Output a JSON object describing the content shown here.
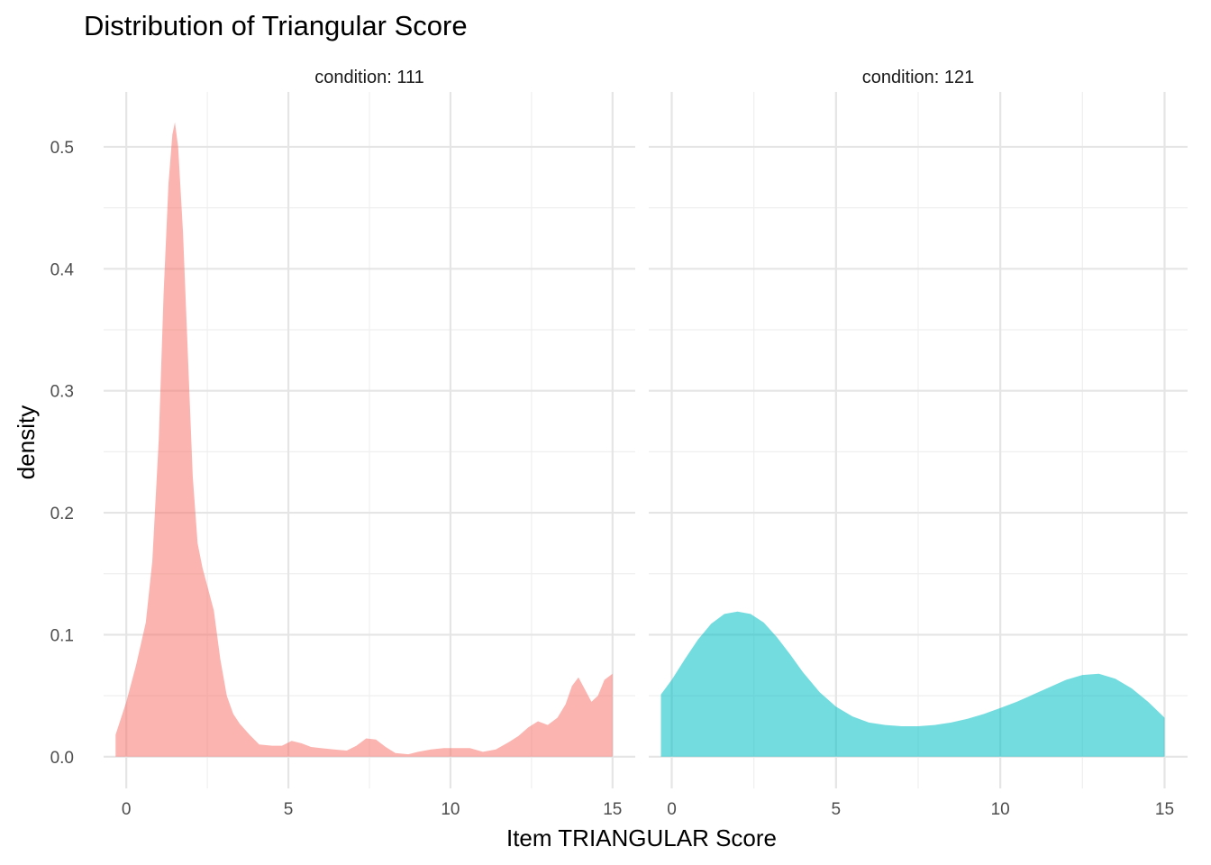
{
  "chart_data": {
    "type": "area",
    "title": "Distribution of Triangular Score",
    "xlabel": "Item TRIANGULAR Score",
    "ylabel": "density",
    "xlim": [
      -0.7,
      15.7
    ],
    "ylim": [
      -0.026,
      0.545
    ],
    "x_ticks": [
      0,
      5,
      10,
      15
    ],
    "x_tick_labels": [
      "0",
      "5",
      "10",
      "15"
    ],
    "y_ticks": [
      0.0,
      0.1,
      0.2,
      0.3,
      0.4,
      0.5
    ],
    "y_tick_labels": [
      "0.0",
      "0.1",
      "0.2",
      "0.3",
      "0.4",
      "0.5"
    ],
    "grid": true,
    "legend": "none",
    "panels": [
      {
        "strip_label": "condition: 111",
        "color": "#F8766D",
        "x": [
          -0.33,
          0,
          0.3,
          0.6,
          0.8,
          1.0,
          1.15,
          1.3,
          1.42,
          1.5,
          1.6,
          1.75,
          1.9,
          2.05,
          2.2,
          2.35,
          2.5,
          2.7,
          2.9,
          3.1,
          3.3,
          3.5,
          3.8,
          4.1,
          4.5,
          4.8,
          5.1,
          5.4,
          5.7,
          6.0,
          6.4,
          6.8,
          7.1,
          7.4,
          7.7,
          8.0,
          8.3,
          8.7,
          9.0,
          9.4,
          9.8,
          10.2,
          10.6,
          11.0,
          11.4,
          11.8,
          12.1,
          12.4,
          12.7,
          13.0,
          13.3,
          13.55,
          13.75,
          13.95,
          14.15,
          14.35,
          14.55,
          14.75,
          15.0
        ],
        "y": [
          0.018,
          0.045,
          0.075,
          0.11,
          0.16,
          0.26,
          0.38,
          0.47,
          0.51,
          0.52,
          0.5,
          0.43,
          0.33,
          0.23,
          0.175,
          0.155,
          0.14,
          0.12,
          0.08,
          0.05,
          0.035,
          0.027,
          0.018,
          0.01,
          0.009,
          0.009,
          0.013,
          0.011,
          0.008,
          0.007,
          0.006,
          0.005,
          0.009,
          0.015,
          0.014,
          0.008,
          0.003,
          0.002,
          0.004,
          0.006,
          0.007,
          0.007,
          0.007,
          0.004,
          0.006,
          0.012,
          0.017,
          0.024,
          0.029,
          0.026,
          0.032,
          0.043,
          0.058,
          0.065,
          0.055,
          0.045,
          0.05,
          0.063,
          0.068
        ]
      },
      {
        "strip_label": "condition: 121",
        "color": "#00BFC4",
        "x": [
          -0.33,
          0,
          0.4,
          0.8,
          1.2,
          1.6,
          2.0,
          2.4,
          2.8,
          3.2,
          3.6,
          4.0,
          4.5,
          5.0,
          5.5,
          6.0,
          6.5,
          7.0,
          7.5,
          8.0,
          8.5,
          9.0,
          9.5,
          10.0,
          10.5,
          11.0,
          11.5,
          12.0,
          12.5,
          13.0,
          13.5,
          14.0,
          14.5,
          15.0
        ],
        "y": [
          0.051,
          0.063,
          0.08,
          0.096,
          0.109,
          0.117,
          0.119,
          0.117,
          0.11,
          0.098,
          0.084,
          0.069,
          0.053,
          0.041,
          0.033,
          0.028,
          0.026,
          0.025,
          0.025,
          0.026,
          0.028,
          0.031,
          0.035,
          0.04,
          0.045,
          0.051,
          0.057,
          0.063,
          0.067,
          0.068,
          0.064,
          0.056,
          0.045,
          0.032
        ]
      }
    ]
  }
}
